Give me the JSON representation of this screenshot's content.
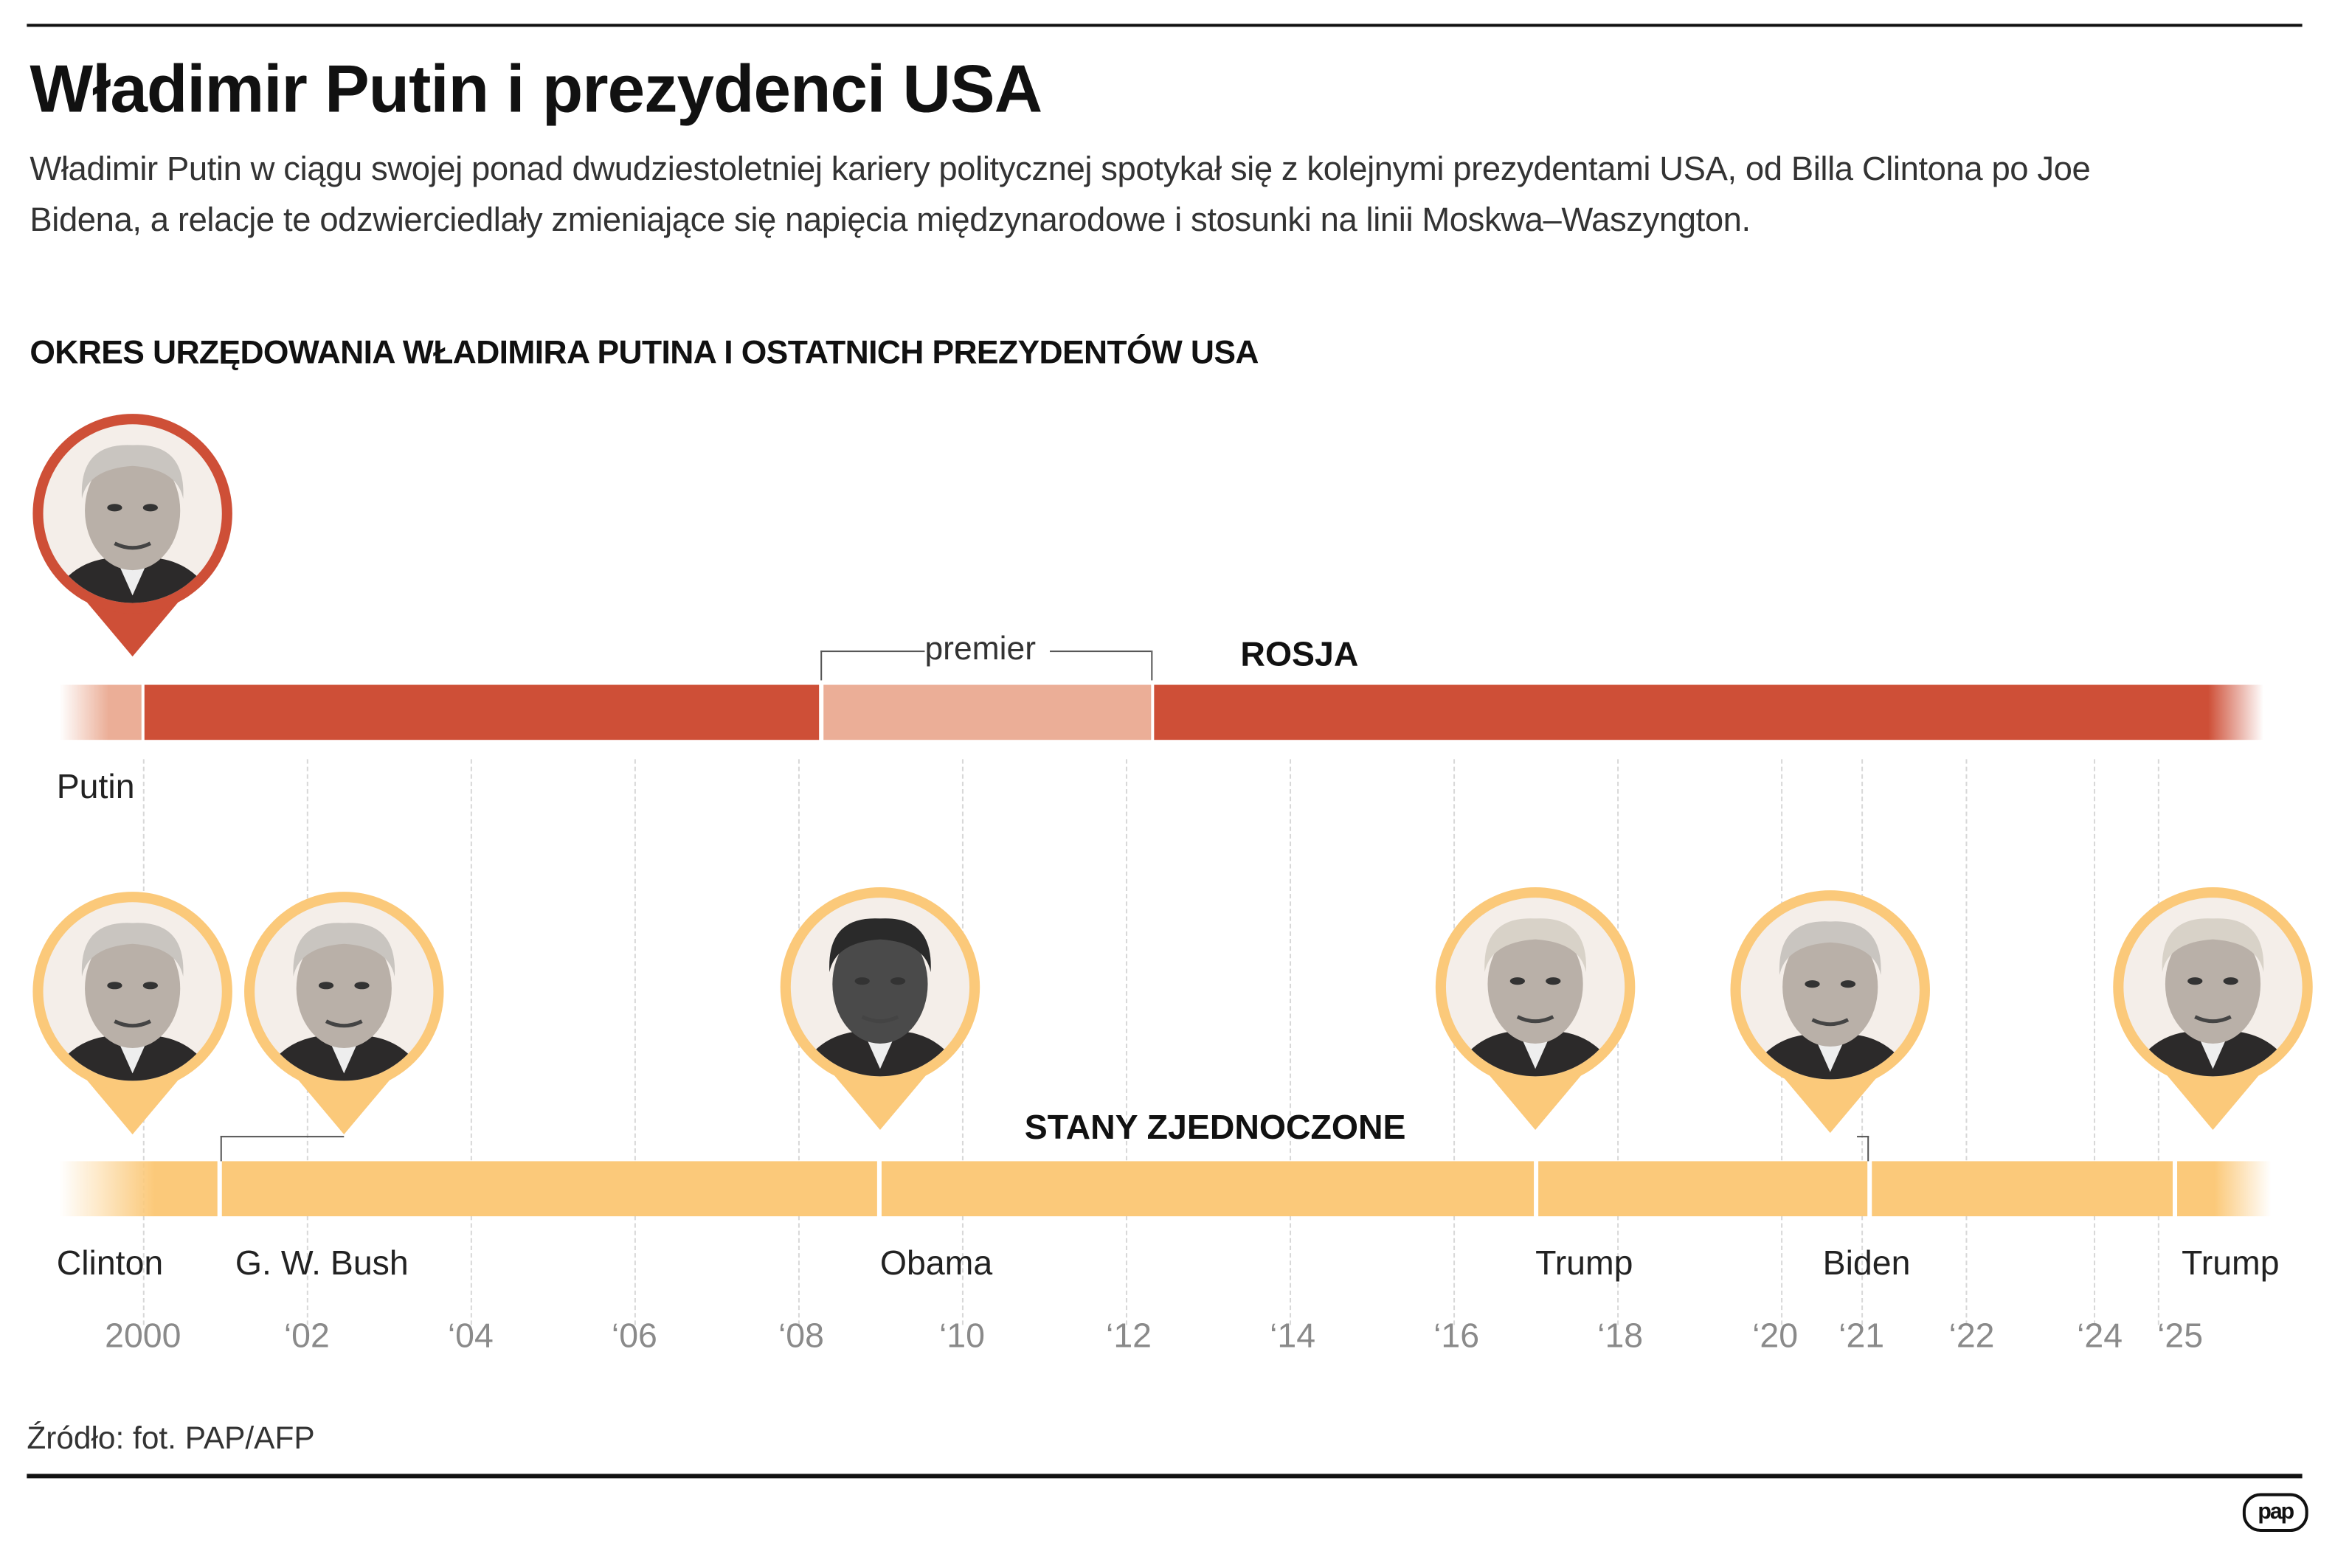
{
  "title": "Władimir Putin i prezydenci USA",
  "subtitle": "Władimir Putin w ciągu swojej ponad dwudziestoletniej kariery politycznej spotykał się z kolejnymi prezydentami USA, od Billa Clintona po Joe Bidena, a relacje te odzwierciedlały zmieniające się napięcia międzynarodowe i stosunki na linii Moskwa–Waszyngton.",
  "section_title": "OKRES URZĘDOWANIA WŁADIMIRA PUTINA I OSTATNICH PREZYDENTÓW USA",
  "russia": {
    "label": "ROSJA",
    "person": "Putin",
    "premier_label": "premier",
    "color_president": "#CE4F37",
    "color_other": "#EBAE97"
  },
  "usa": {
    "label": "STANY ZJEDNOCZONE",
    "color": "#FBC97A",
    "presidents": [
      "Clinton",
      "G. W. Bush",
      "Obama",
      "Trump",
      "Biden",
      "Trump"
    ]
  },
  "years": [
    "2000",
    "‘02",
    "‘04",
    "‘06",
    "‘08",
    "‘10",
    "‘12",
    "‘14",
    "‘16",
    "‘18",
    "‘20",
    "‘21",
    "‘22",
    "‘24",
    "‘25"
  ],
  "source": "Źródło: fot. PAP/AFP",
  "logo": "pap"
}
